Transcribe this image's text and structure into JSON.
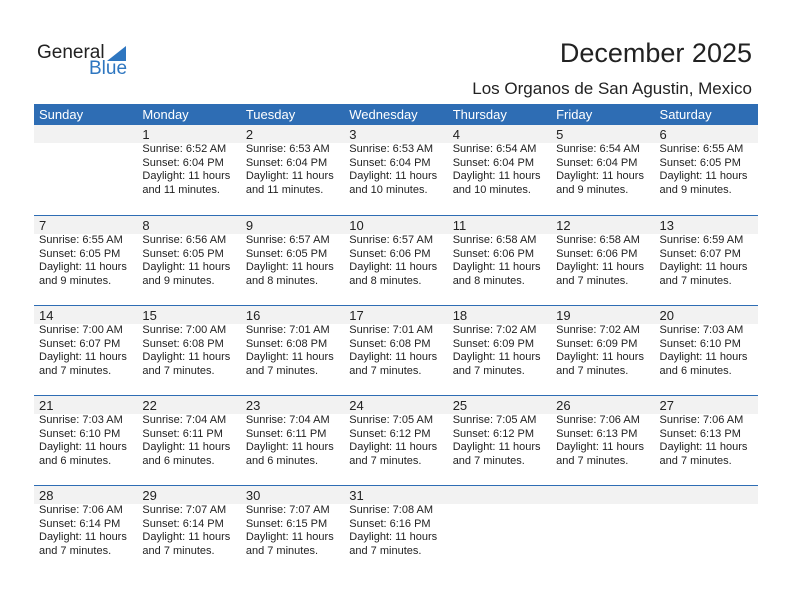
{
  "logo": {
    "word1": "General",
    "word2": "Blue"
  },
  "header": {
    "title": "December 2025",
    "location": "Los Organos de San Agustin, Mexico"
  },
  "colors": {
    "accent": "#2e6db4",
    "band": "#f2f2f2"
  },
  "days_of_week": [
    "Sunday",
    "Monday",
    "Tuesday",
    "Wednesday",
    "Thursday",
    "Friday",
    "Saturday"
  ],
  "weeks": [
    [
      null,
      {
        "day": "1",
        "sunrise": "Sunrise: 6:52 AM",
        "sunset": "Sunset: 6:04 PM",
        "daylight1": "Daylight: 11 hours",
        "daylight2": "and 11 minutes."
      },
      {
        "day": "2",
        "sunrise": "Sunrise: 6:53 AM",
        "sunset": "Sunset: 6:04 PM",
        "daylight1": "Daylight: 11 hours",
        "daylight2": "and 11 minutes."
      },
      {
        "day": "3",
        "sunrise": "Sunrise: 6:53 AM",
        "sunset": "Sunset: 6:04 PM",
        "daylight1": "Daylight: 11 hours",
        "daylight2": "and 10 minutes."
      },
      {
        "day": "4",
        "sunrise": "Sunrise: 6:54 AM",
        "sunset": "Sunset: 6:04 PM",
        "daylight1": "Daylight: 11 hours",
        "daylight2": "and 10 minutes."
      },
      {
        "day": "5",
        "sunrise": "Sunrise: 6:54 AM",
        "sunset": "Sunset: 6:04 PM",
        "daylight1": "Daylight: 11 hours",
        "daylight2": "and 9 minutes."
      },
      {
        "day": "6",
        "sunrise": "Sunrise: 6:55 AM",
        "sunset": "Sunset: 6:05 PM",
        "daylight1": "Daylight: 11 hours",
        "daylight2": "and 9 minutes."
      }
    ],
    [
      {
        "day": "7",
        "sunrise": "Sunrise: 6:55 AM",
        "sunset": "Sunset: 6:05 PM",
        "daylight1": "Daylight: 11 hours",
        "daylight2": "and 9 minutes."
      },
      {
        "day": "8",
        "sunrise": "Sunrise: 6:56 AM",
        "sunset": "Sunset: 6:05 PM",
        "daylight1": "Daylight: 11 hours",
        "daylight2": "and 9 minutes."
      },
      {
        "day": "9",
        "sunrise": "Sunrise: 6:57 AM",
        "sunset": "Sunset: 6:05 PM",
        "daylight1": "Daylight: 11 hours",
        "daylight2": "and 8 minutes."
      },
      {
        "day": "10",
        "sunrise": "Sunrise: 6:57 AM",
        "sunset": "Sunset: 6:06 PM",
        "daylight1": "Daylight: 11 hours",
        "daylight2": "and 8 minutes."
      },
      {
        "day": "11",
        "sunrise": "Sunrise: 6:58 AM",
        "sunset": "Sunset: 6:06 PM",
        "daylight1": "Daylight: 11 hours",
        "daylight2": "and 8 minutes."
      },
      {
        "day": "12",
        "sunrise": "Sunrise: 6:58 AM",
        "sunset": "Sunset: 6:06 PM",
        "daylight1": "Daylight: 11 hours",
        "daylight2": "and 7 minutes."
      },
      {
        "day": "13",
        "sunrise": "Sunrise: 6:59 AM",
        "sunset": "Sunset: 6:07 PM",
        "daylight1": "Daylight: 11 hours",
        "daylight2": "and 7 minutes."
      }
    ],
    [
      {
        "day": "14",
        "sunrise": "Sunrise: 7:00 AM",
        "sunset": "Sunset: 6:07 PM",
        "daylight1": "Daylight: 11 hours",
        "daylight2": "and 7 minutes."
      },
      {
        "day": "15",
        "sunrise": "Sunrise: 7:00 AM",
        "sunset": "Sunset: 6:08 PM",
        "daylight1": "Daylight: 11 hours",
        "daylight2": "and 7 minutes."
      },
      {
        "day": "16",
        "sunrise": "Sunrise: 7:01 AM",
        "sunset": "Sunset: 6:08 PM",
        "daylight1": "Daylight: 11 hours",
        "daylight2": "and 7 minutes."
      },
      {
        "day": "17",
        "sunrise": "Sunrise: 7:01 AM",
        "sunset": "Sunset: 6:08 PM",
        "daylight1": "Daylight: 11 hours",
        "daylight2": "and 7 minutes."
      },
      {
        "day": "18",
        "sunrise": "Sunrise: 7:02 AM",
        "sunset": "Sunset: 6:09 PM",
        "daylight1": "Daylight: 11 hours",
        "daylight2": "and 7 minutes."
      },
      {
        "day": "19",
        "sunrise": "Sunrise: 7:02 AM",
        "sunset": "Sunset: 6:09 PM",
        "daylight1": "Daylight: 11 hours",
        "daylight2": "and 7 minutes."
      },
      {
        "day": "20",
        "sunrise": "Sunrise: 7:03 AM",
        "sunset": "Sunset: 6:10 PM",
        "daylight1": "Daylight: 11 hours",
        "daylight2": "and 6 minutes."
      }
    ],
    [
      {
        "day": "21",
        "sunrise": "Sunrise: 7:03 AM",
        "sunset": "Sunset: 6:10 PM",
        "daylight1": "Daylight: 11 hours",
        "daylight2": "and 6 minutes."
      },
      {
        "day": "22",
        "sunrise": "Sunrise: 7:04 AM",
        "sunset": "Sunset: 6:11 PM",
        "daylight1": "Daylight: 11 hours",
        "daylight2": "and 6 minutes."
      },
      {
        "day": "23",
        "sunrise": "Sunrise: 7:04 AM",
        "sunset": "Sunset: 6:11 PM",
        "daylight1": "Daylight: 11 hours",
        "daylight2": "and 6 minutes."
      },
      {
        "day": "24",
        "sunrise": "Sunrise: 7:05 AM",
        "sunset": "Sunset: 6:12 PM",
        "daylight1": "Daylight: 11 hours",
        "daylight2": "and 7 minutes."
      },
      {
        "day": "25",
        "sunrise": "Sunrise: 7:05 AM",
        "sunset": "Sunset: 6:12 PM",
        "daylight1": "Daylight: 11 hours",
        "daylight2": "and 7 minutes."
      },
      {
        "day": "26",
        "sunrise": "Sunrise: 7:06 AM",
        "sunset": "Sunset: 6:13 PM",
        "daylight1": "Daylight: 11 hours",
        "daylight2": "and 7 minutes."
      },
      {
        "day": "27",
        "sunrise": "Sunrise: 7:06 AM",
        "sunset": "Sunset: 6:13 PM",
        "daylight1": "Daylight: 11 hours",
        "daylight2": "and 7 minutes."
      }
    ],
    [
      {
        "day": "28",
        "sunrise": "Sunrise: 7:06 AM",
        "sunset": "Sunset: 6:14 PM",
        "daylight1": "Daylight: 11 hours",
        "daylight2": "and 7 minutes."
      },
      {
        "day": "29",
        "sunrise": "Sunrise: 7:07 AM",
        "sunset": "Sunset: 6:14 PM",
        "daylight1": "Daylight: 11 hours",
        "daylight2": "and 7 minutes."
      },
      {
        "day": "30",
        "sunrise": "Sunrise: 7:07 AM",
        "sunset": "Sunset: 6:15 PM",
        "daylight1": "Daylight: 11 hours",
        "daylight2": "and 7 minutes."
      },
      {
        "day": "31",
        "sunrise": "Sunrise: 7:08 AM",
        "sunset": "Sunset: 6:16 PM",
        "daylight1": "Daylight: 11 hours",
        "daylight2": "and 7 minutes."
      },
      null,
      null,
      null
    ]
  ]
}
